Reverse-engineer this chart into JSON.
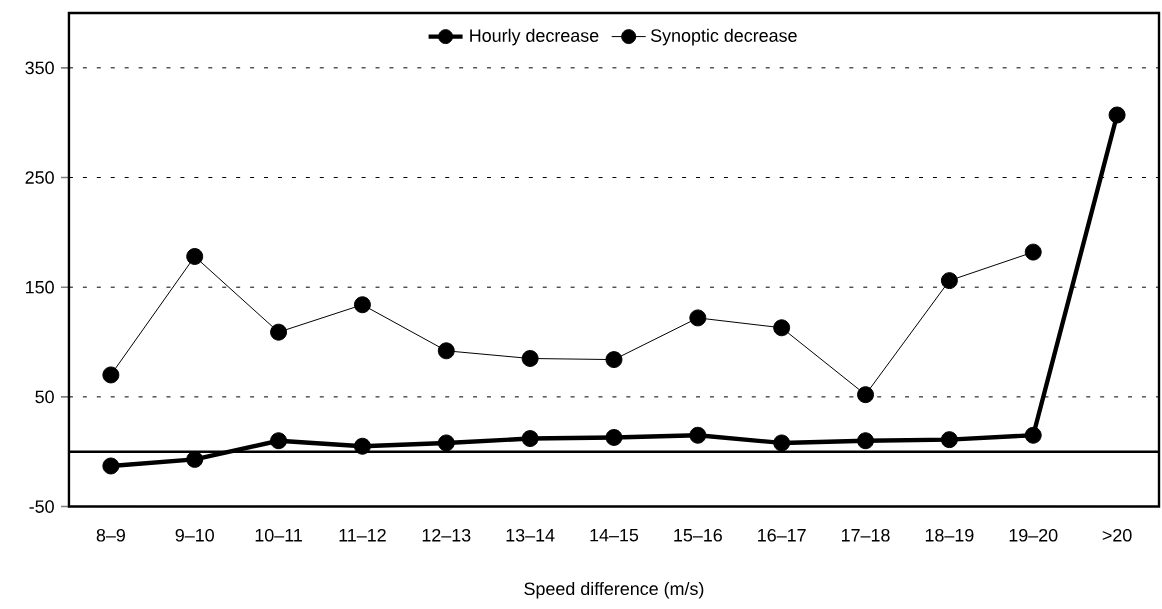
{
  "chart_data": {
    "type": "line",
    "xlabel": "Speed difference (m/s)",
    "categories": [
      "8–9",
      "9–10",
      "10–11",
      "11–12",
      "12–13",
      "13–14",
      "14–15",
      "15–16",
      "16–17",
      "17–18",
      "18–19",
      "19–20",
      ">20"
    ],
    "series": [
      {
        "name": "Hourly decrease",
        "color": "#000000",
        "values": [
          -13,
          -7,
          10,
          5,
          8,
          12,
          13,
          15,
          8,
          10,
          11,
          15,
          307
        ]
      },
      {
        "name": "Synoptic decrease",
        "color": "#000000",
        "values": [
          70,
          178,
          109,
          134,
          92,
          85,
          84,
          122,
          113,
          52,
          156,
          182,
          null
        ]
      }
    ],
    "ylim": [
      -50,
      400
    ],
    "yticks": [
      -50,
      50,
      150,
      250,
      350
    ],
    "ref_lines": [
      {
        "axis": "y",
        "value": 0,
        "color": "#000000",
        "line_style": "solid"
      }
    ],
    "grid": "y",
    "legend": "top",
    "marker": "circle",
    "line_style": "solid"
  }
}
